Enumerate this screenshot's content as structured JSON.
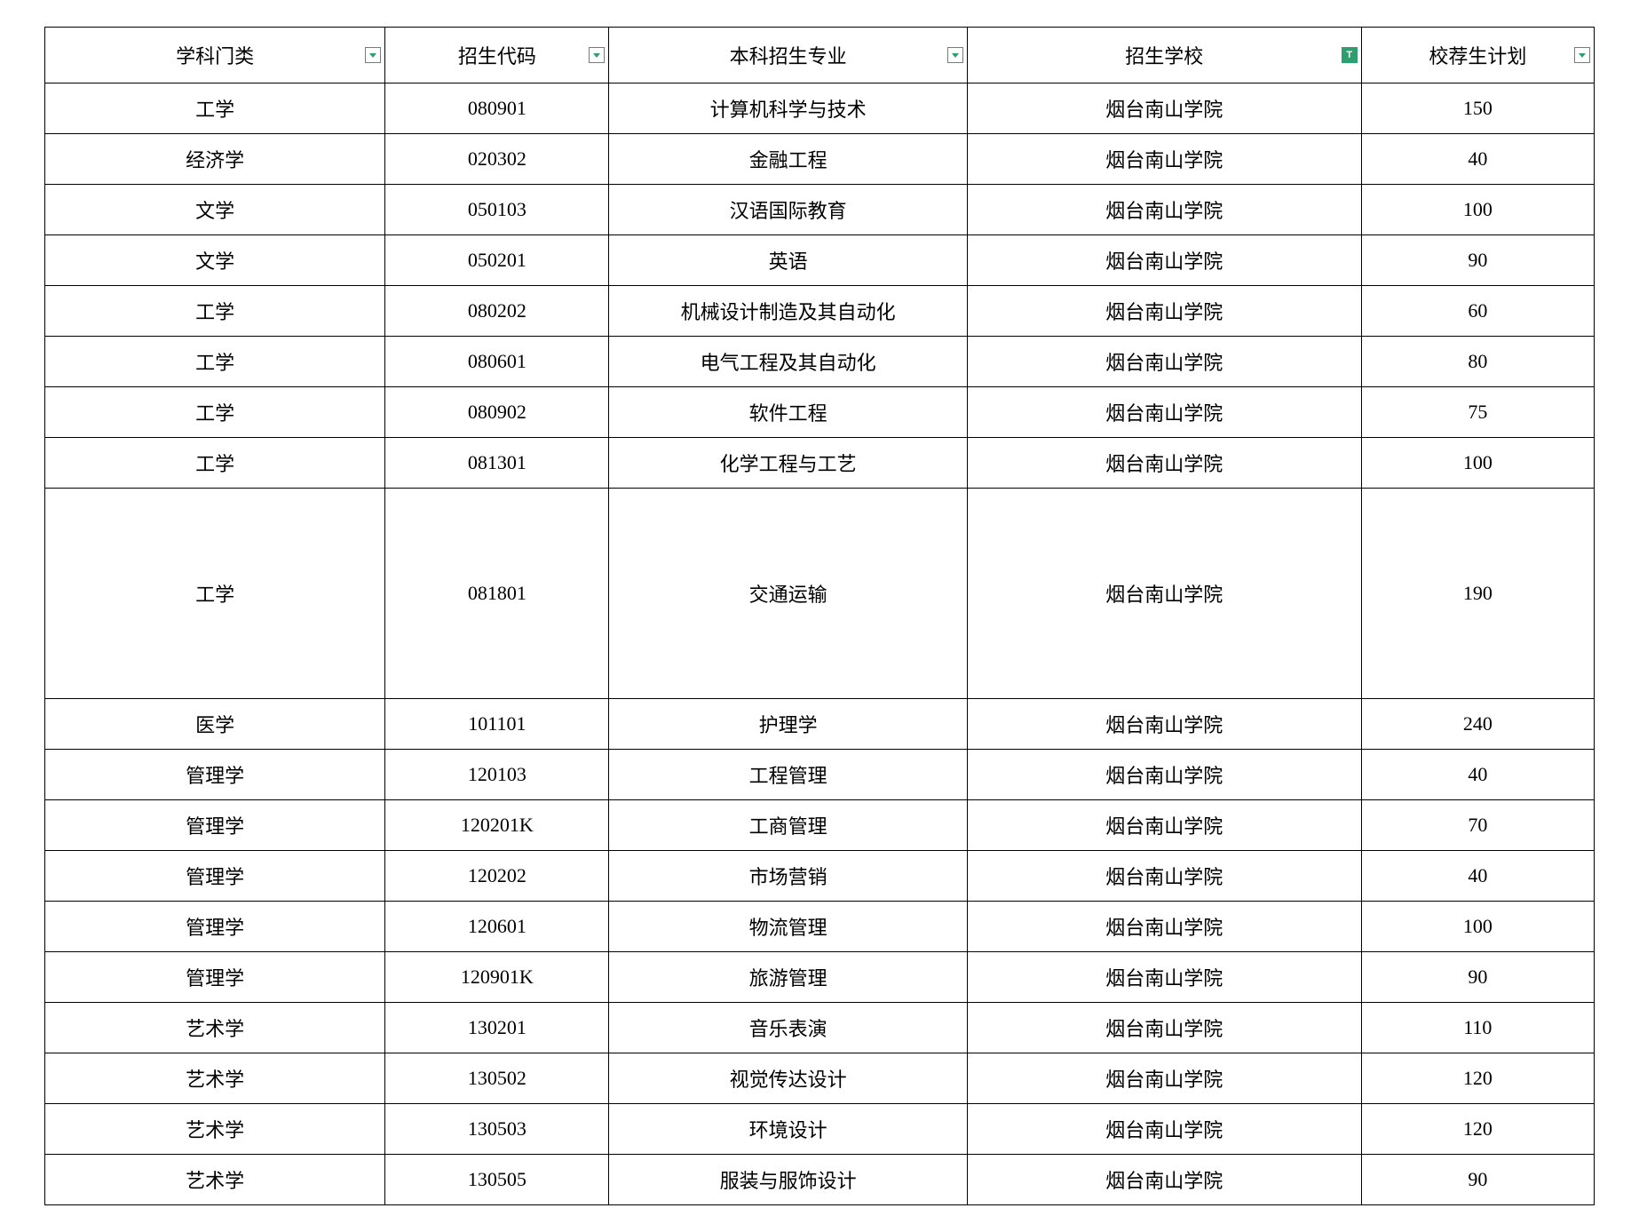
{
  "table": {
    "columns": [
      {
        "label": "学科门类",
        "filter": "normal"
      },
      {
        "label": "招生代码",
        "filter": "normal"
      },
      {
        "label": "本科招生专业",
        "filter": "normal"
      },
      {
        "label": "招生学校",
        "filter": "active"
      },
      {
        "label": "校荐生计划",
        "filter": "normal"
      }
    ],
    "column_widths_pct": [
      19,
      12.5,
      20,
      22,
      13
    ],
    "border_color": "#000000",
    "font_size_pt": 16,
    "filter_arrow_color": "#2e9e6f",
    "filter_active_bg": "#2e9e6f",
    "filter_active_glyph": "T",
    "rows": [
      {
        "cells": [
          "工学",
          "080901",
          "计算机科学与技术",
          "烟台南山学院",
          "150"
        ],
        "tall": false
      },
      {
        "cells": [
          "经济学",
          "020302",
          "金融工程",
          "烟台南山学院",
          "40"
        ],
        "tall": false
      },
      {
        "cells": [
          "文学",
          "050103",
          "汉语国际教育",
          "烟台南山学院",
          "100"
        ],
        "tall": false
      },
      {
        "cells": [
          "文学",
          "050201",
          "英语",
          "烟台南山学院",
          "90"
        ],
        "tall": false
      },
      {
        "cells": [
          "工学",
          "080202",
          "机械设计制造及其自动化",
          "烟台南山学院",
          "60"
        ],
        "tall": false
      },
      {
        "cells": [
          "工学",
          "080601",
          "电气工程及其自动化",
          "烟台南山学院",
          "80"
        ],
        "tall": false
      },
      {
        "cells": [
          "工学",
          "080902",
          "软件工程",
          "烟台南山学院",
          "75"
        ],
        "tall": false
      },
      {
        "cells": [
          "工学",
          "081301",
          "化学工程与工艺",
          "烟台南山学院",
          "100"
        ],
        "tall": false
      },
      {
        "cells": [
          "工学",
          "081801",
          "交通运输",
          "烟台南山学院",
          "190"
        ],
        "tall": true
      },
      {
        "cells": [
          "医学",
          "101101",
          "护理学",
          "烟台南山学院",
          "240"
        ],
        "tall": false
      },
      {
        "cells": [
          "管理学",
          "120103",
          "工程管理",
          "烟台南山学院",
          "40"
        ],
        "tall": false
      },
      {
        "cells": [
          "管理学",
          "120201K",
          "工商管理",
          "烟台南山学院",
          "70"
        ],
        "tall": false
      },
      {
        "cells": [
          "管理学",
          "120202",
          "市场营销",
          "烟台南山学院",
          "40"
        ],
        "tall": false
      },
      {
        "cells": [
          "管理学",
          "120601",
          "物流管理",
          "烟台南山学院",
          "100"
        ],
        "tall": false
      },
      {
        "cells": [
          "管理学",
          "120901K",
          "旅游管理",
          "烟台南山学院",
          "90"
        ],
        "tall": false
      },
      {
        "cells": [
          "艺术学",
          "130201",
          "音乐表演",
          "烟台南山学院",
          "110"
        ],
        "tall": false
      },
      {
        "cells": [
          "艺术学",
          "130502",
          "视觉传达设计",
          "烟台南山学院",
          "120"
        ],
        "tall": false
      },
      {
        "cells": [
          "艺术学",
          "130503",
          "环境设计",
          "烟台南山学院",
          "120"
        ],
        "tall": false
      },
      {
        "cells": [
          "艺术学",
          "130505",
          "服装与服饰设计",
          "烟台南山学院",
          "90"
        ],
        "tall": false
      }
    ]
  }
}
